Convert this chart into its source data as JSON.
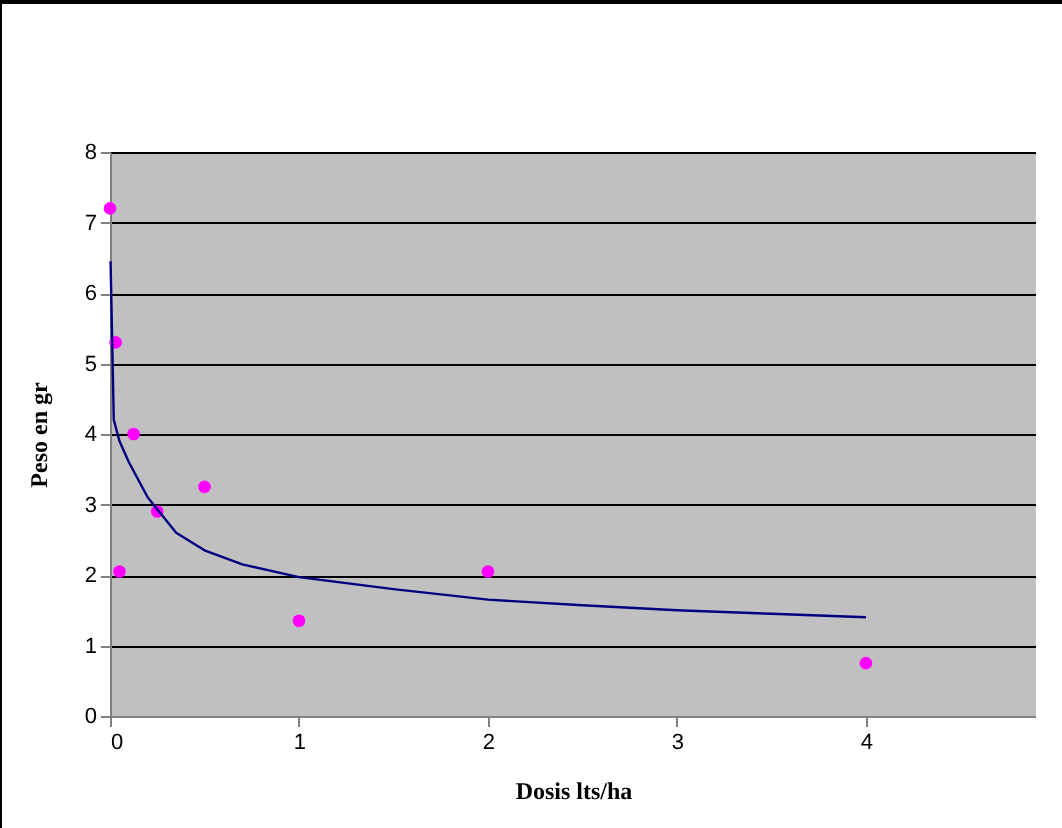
{
  "chart_data": {
    "type": "scatter",
    "xlabel": "Dosis  lts/ha",
    "ylabel": "Peso en gr",
    "xlim": [
      0,
      4.9
    ],
    "xticks": [
      0,
      1,
      2,
      3,
      4
    ],
    "ylim": [
      0,
      8
    ],
    "yticks": [
      0,
      1,
      2,
      3,
      4,
      5,
      6,
      7,
      8
    ],
    "grid": "y",
    "marker": "circle",
    "series": [
      {
        "type": "scatter",
        "color": "#ff00ff",
        "x": [
          0,
          0.03,
          0.05,
          0.125,
          0.25,
          0.5,
          1,
          2,
          4
        ],
        "values": [
          7.2,
          5.3,
          2.05,
          4.0,
          2.9,
          3.25,
          1.35,
          2.05,
          0.75
        ]
      },
      {
        "type": "line",
        "color": "#000080",
        "marker": "none",
        "x": [
          0.003,
          0.02,
          0.05,
          0.1,
          0.2,
          0.35,
          0.5,
          0.7,
          1,
          1.5,
          2,
          2.5,
          3,
          3.5,
          4
        ],
        "values": [
          6.45,
          4.2,
          3.9,
          3.6,
          3.1,
          2.6,
          2.35,
          2.15,
          1.97,
          1.8,
          1.65,
          1.57,
          1.5,
          1.45,
          1.4
        ]
      }
    ]
  }
}
